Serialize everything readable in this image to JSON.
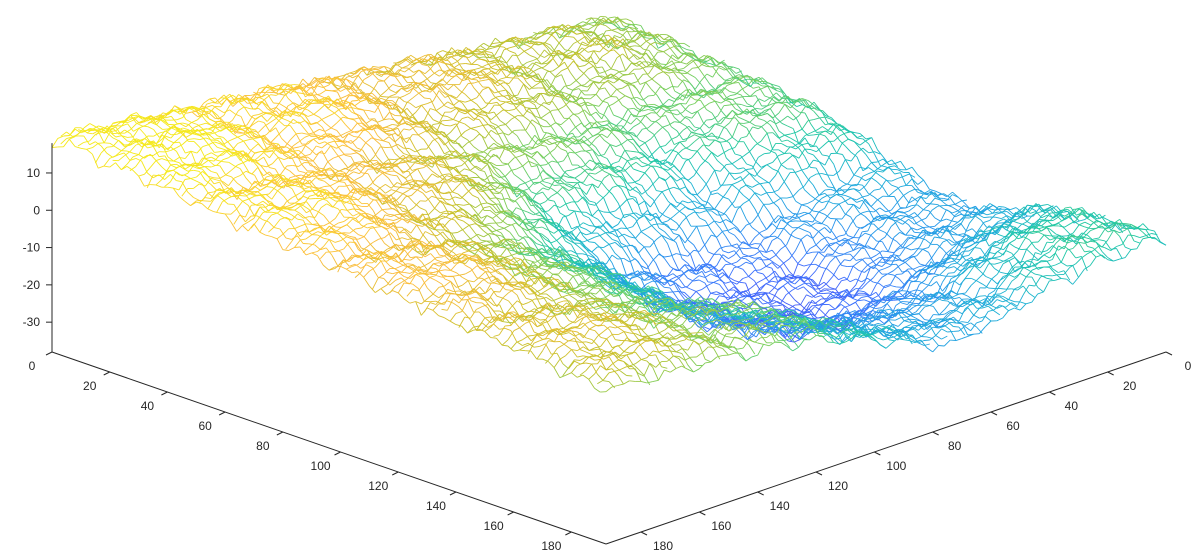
{
  "chart_data": {
    "type": "surface",
    "title": "",
    "xlabel": "",
    "ylabel": "",
    "zlabel": "",
    "grid": false,
    "colormap": "parula",
    "colormap_stops": [
      "#3e26a8",
      "#4746eb",
      "#3e6ffe",
      "#2797eb",
      "#1cb2d3",
      "#1fc8a5",
      "#73cf5f",
      "#c8c129",
      "#fcbd3d",
      "#f5e91c"
    ],
    "z_range": [
      -36,
      18
    ],
    "x_axis": {
      "lim": [
        0,
        192
      ],
      "ticks": [
        0,
        20,
        40,
        60,
        80,
        100,
        120,
        140,
        160,
        180
      ]
    },
    "y_axis": {
      "lim": [
        0,
        192
      ],
      "ticks": [
        0,
        20,
        40,
        60,
        80,
        100,
        120,
        140,
        160,
        180
      ]
    },
    "z_axis": {
      "lim": [
        -38,
        18
      ],
      "ticks": [
        -30,
        -20,
        -10,
        0,
        10
      ]
    },
    "surface_description_points": [
      {
        "x": 0,
        "y": 0,
        "z": 18
      },
      {
        "x": 0,
        "y": 192,
        "z": -2
      },
      {
        "x": 192,
        "y": 0,
        "z": 2
      },
      {
        "x": 192,
        "y": 192,
        "z": -8
      },
      {
        "x": 120,
        "y": 120,
        "z": -36
      },
      {
        "x": 192,
        "y": 120,
        "z": -22
      },
      {
        "x": 120,
        "y": 192,
        "z": -20
      }
    ]
  }
}
